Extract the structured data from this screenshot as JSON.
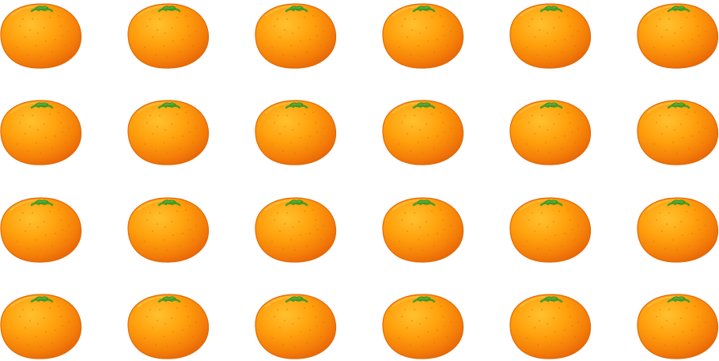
{
  "scene": {
    "rows": 4,
    "columns": 6,
    "count": 24,
    "object_icon": "orange-icon",
    "colors": {
      "background": "#ffffff",
      "peel_light": "#ffb21a",
      "peel_mid": "#ff9600",
      "peel_dark": "#e8650a",
      "leaf": "#3fa62d"
    }
  }
}
